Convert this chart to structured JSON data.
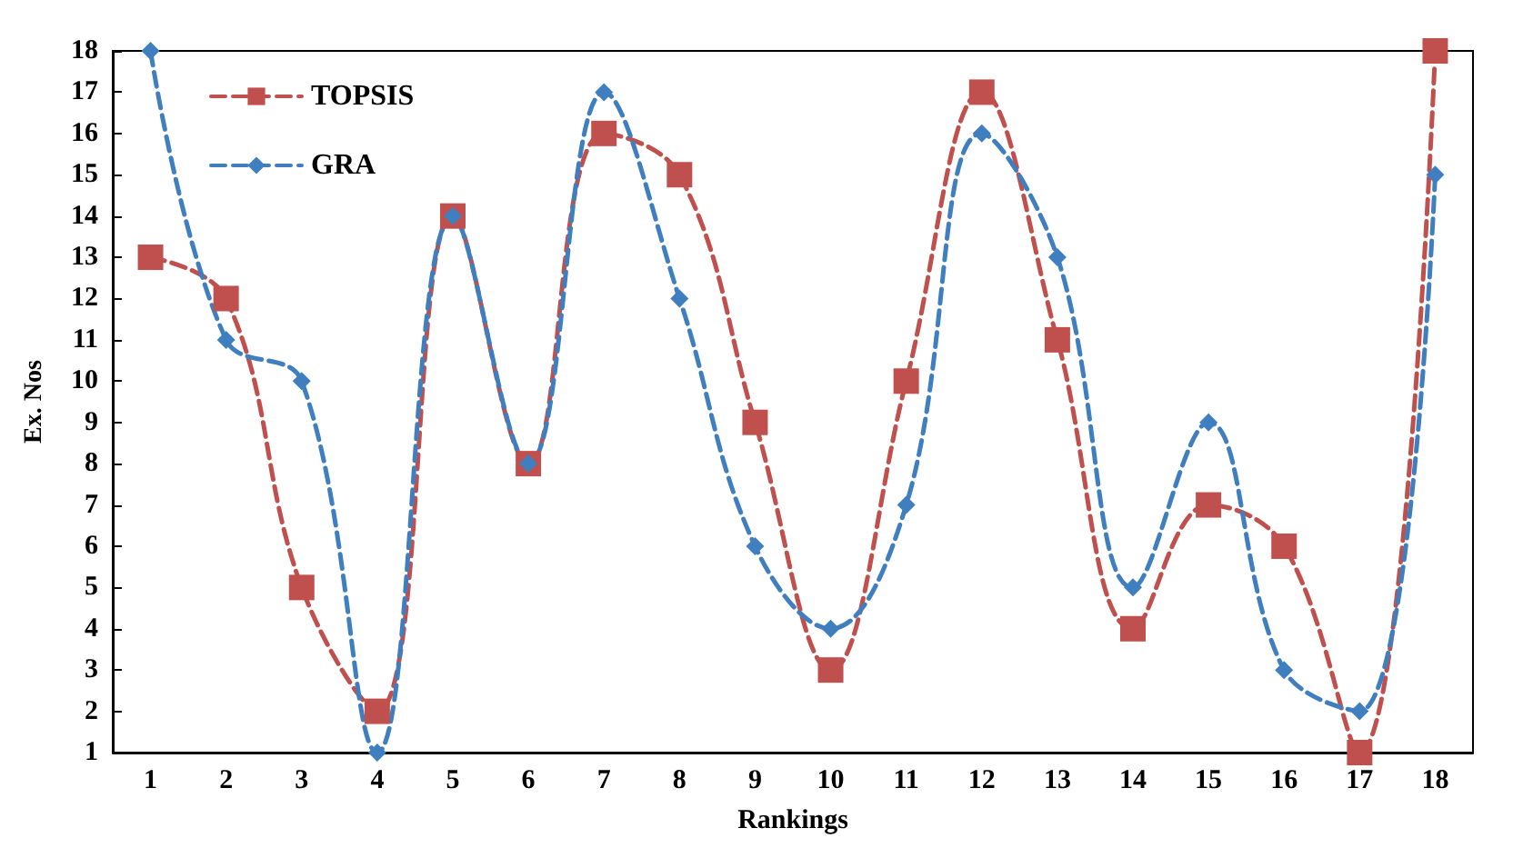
{
  "chart_data": {
    "type": "line",
    "xlabel": "Rankings",
    "ylabel": "Ex. Nos",
    "categories": [
      "1",
      "2",
      "3",
      "4",
      "5",
      "6",
      "7",
      "8",
      "9",
      "10",
      "11",
      "12",
      "13",
      "14",
      "15",
      "16",
      "17",
      "18"
    ],
    "series": [
      {
        "name": "TOPSIS",
        "color": "#c0504d",
        "marker": "square",
        "line_style": "dashed",
        "values": [
          13,
          12,
          5,
          2,
          14,
          8,
          16,
          15,
          9,
          3,
          10,
          17,
          11,
          4,
          7,
          6,
          1,
          18
        ]
      },
      {
        "name": "GRA",
        "color": "#3f7fc0",
        "marker": "diamond",
        "line_style": "dashed",
        "values": [
          18,
          11,
          10,
          1,
          14,
          8,
          17,
          12,
          6,
          4,
          7,
          16,
          13,
          5,
          9,
          3,
          2,
          15
        ]
      }
    ],
    "ylim": [
      1,
      18
    ],
    "yticks": [
      1,
      2,
      3,
      4,
      5,
      6,
      7,
      8,
      9,
      10,
      11,
      12,
      13,
      14,
      15,
      16,
      17,
      18
    ],
    "grid": false,
    "legend": "top left"
  }
}
